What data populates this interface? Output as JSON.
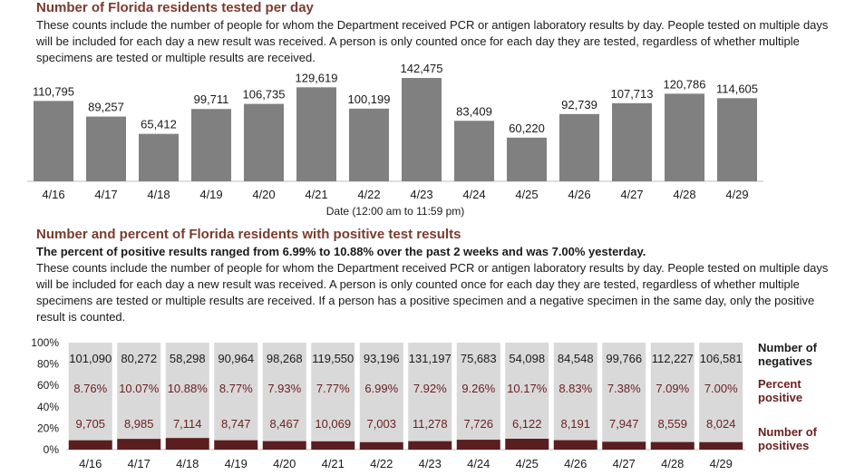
{
  "section1": {
    "title": "Number of Florida residents tested per day",
    "description": "These counts include the number of people for whom the Department received PCR or antigen laboratory results by day. People tested on multiple days will be included for each day a new result was received. A person is only counted once for each day they are tested, regardless of whether multiple specimens are tested or multiple results are received."
  },
  "section2": {
    "title": "Number and percent of Florida residents with positive test results",
    "summary": "The percent of positive results ranged from 6.99% to 10.88% over the past 2 weeks and was 7.00% yesterday.",
    "description": "These counts include the number of people for whom the Department received PCR or antigen laboratory results by day. People tested on multiple days will be included for each day a new result was received. A person is only counted once for each day they are tested, regardless of whether multiple specimens are tested or multiple results are received. If a person has a positive specimen and a negative specimen in the same day, only the positive result is counted."
  },
  "chart_data": [
    {
      "type": "bar",
      "categories": [
        "4/16",
        "4/17",
        "4/18",
        "4/19",
        "4/20",
        "4/21",
        "4/22",
        "4/23",
        "4/24",
        "4/25",
        "4/26",
        "4/27",
        "4/28",
        "4/29"
      ],
      "values": [
        110795,
        89257,
        65412,
        99711,
        106735,
        129619,
        100199,
        142475,
        83409,
        60220,
        92739,
        107713,
        120786,
        114605
      ],
      "value_labels": [
        "110,795",
        "89,257",
        "65,412",
        "99,711",
        "106,735",
        "129,619",
        "100,199",
        "142,475",
        "83,409",
        "60,220",
        "92,739",
        "107,713",
        "120,786",
        "114,605"
      ],
      "xlabel": "Date (12:00 am to 11:59 pm)",
      "ylim": [
        0,
        150000
      ],
      "colors": {
        "bar": "#808080"
      }
    },
    {
      "type": "bar",
      "stacked": true,
      "normalized": true,
      "categories": [
        "4/16",
        "4/17",
        "4/18",
        "4/19",
        "4/20",
        "4/21",
        "4/22",
        "4/23",
        "4/24",
        "4/25",
        "4/26",
        "4/27",
        "4/28",
        "4/29"
      ],
      "series": [
        {
          "name": "Number of positives",
          "values": [
            9705,
            8985,
            7114,
            8747,
            8467,
            10069,
            7003,
            11278,
            7726,
            6122,
            8191,
            7947,
            8559,
            8024
          ],
          "labels": [
            "9,705",
            "8,985",
            "7,114",
            "8,747",
            "8,467",
            "10,069",
            "7,003",
            "11,278",
            "7,726",
            "6,122",
            "8,191",
            "7,947",
            "8,559",
            "8,024"
          ]
        },
        {
          "name": "Number of negatives",
          "values": [
            101090,
            80272,
            58298,
            90964,
            98268,
            119550,
            93196,
            131197,
            75683,
            54098,
            84548,
            99766,
            112227,
            106581
          ],
          "labels": [
            "101,090",
            "80,272",
            "58,298",
            "90,964",
            "98,268",
            "119,550",
            "93,196",
            "131,197",
            "75,683",
            "54,098",
            "84,548",
            "99,766",
            "112,227",
            "106,581"
          ]
        }
      ],
      "percent_positive": {
        "name": "Percent positive",
        "values": [
          8.76,
          10.07,
          10.88,
          8.77,
          7.93,
          7.77,
          6.99,
          7.92,
          9.26,
          10.17,
          8.83,
          7.38,
          7.09,
          7.0
        ],
        "labels": [
          "8.76%",
          "10.07%",
          "10.88%",
          "8.77%",
          "7.93%",
          "7.77%",
          "6.99%",
          "7.92%",
          "9.26%",
          "10.17%",
          "8.83%",
          "7.38%",
          "7.09%",
          "7.00%"
        ]
      },
      "y_ticks": [
        "0%",
        "20%",
        "40%",
        "60%",
        "80%",
        "100%"
      ],
      "ylim": [
        0,
        100
      ],
      "legend": {
        "negatives": [
          "Number of",
          "negatives"
        ],
        "percent": [
          "Percent",
          "positive"
        ],
        "positives": [
          "Number of",
          "positives"
        ]
      },
      "colors": {
        "negatives": "#d9d9d9",
        "positives": "#5a1e1e",
        "percent_text": "#6b1f1f"
      }
    }
  ]
}
